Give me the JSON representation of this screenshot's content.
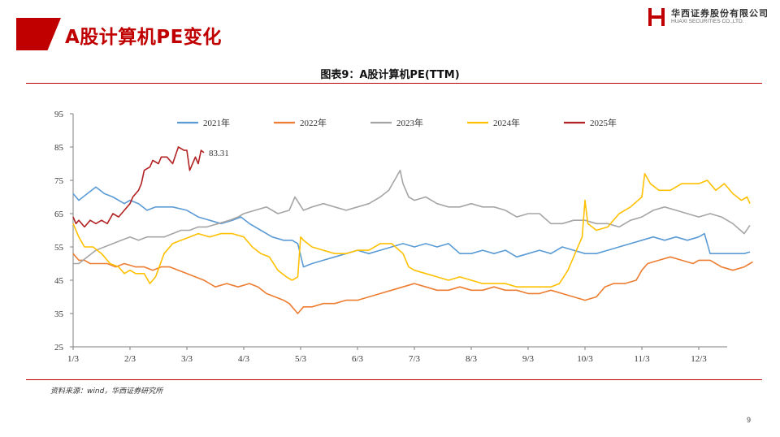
{
  "header": {
    "title": "A股计算机PE变化",
    "logo_cn": "华西证券股份有限公司",
    "logo_en": "HUAXI SECURITIES CO.,LTD."
  },
  "chart_title": "图表9：A股计算机PE(TTM)",
  "source": "资料来源：wind，华西证券研究所",
  "page_number": "9",
  "colors": {
    "accent": "#c00000",
    "s2021": "#5b9bd5",
    "s2022": "#ed7d31",
    "s2023": "#a5a5a5",
    "s2024": "#ffc000",
    "s2025": "#b22222"
  },
  "chart_data": {
    "type": "line",
    "title": "图表9：A股计算机PE(TTM)",
    "xlabel": "",
    "ylabel": "",
    "ylim": [
      25,
      95
    ],
    "yticks": [
      25,
      35,
      45,
      55,
      65,
      75,
      85,
      95
    ],
    "xtick_labels": [
      "1/3",
      "2/3",
      "3/3",
      "4/3",
      "5/3",
      "6/3",
      "7/3",
      "8/3",
      "9/3",
      "10/3",
      "11/3",
      "12/3"
    ],
    "x_unit": "month-day (month index 1–12.5)",
    "grid": false,
    "legend": "top",
    "annotation": {
      "text": "83.31",
      "series": "2025年",
      "x": 3.1,
      "y": 83.31
    },
    "series": [
      {
        "name": "2021年",
        "points": [
          [
            1.0,
            71
          ],
          [
            1.1,
            69
          ],
          [
            1.25,
            71
          ],
          [
            1.4,
            73
          ],
          [
            1.55,
            71
          ],
          [
            1.7,
            70
          ],
          [
            1.9,
            68
          ],
          [
            2.0,
            69
          ],
          [
            2.15,
            68
          ],
          [
            2.3,
            66
          ],
          [
            2.45,
            67
          ],
          [
            2.6,
            67
          ],
          [
            2.75,
            67
          ],
          [
            3.0,
            66
          ],
          [
            3.2,
            64
          ],
          [
            3.4,
            63
          ],
          [
            3.6,
            62
          ],
          [
            3.8,
            63
          ],
          [
            3.95,
            64
          ],
          [
            4.1,
            62
          ],
          [
            4.3,
            60
          ],
          [
            4.5,
            58
          ],
          [
            4.7,
            57
          ],
          [
            4.85,
            57
          ],
          [
            4.95,
            56
          ],
          [
            5.05,
            49
          ],
          [
            5.2,
            50
          ],
          [
            5.4,
            51
          ],
          [
            5.6,
            52
          ],
          [
            5.8,
            53
          ],
          [
            6.0,
            54
          ],
          [
            6.2,
            53
          ],
          [
            6.4,
            54
          ],
          [
            6.6,
            55
          ],
          [
            6.8,
            56
          ],
          [
            7.0,
            55
          ],
          [
            7.2,
            56
          ],
          [
            7.4,
            55
          ],
          [
            7.6,
            56
          ],
          [
            7.8,
            53
          ],
          [
            8.0,
            53
          ],
          [
            8.2,
            54
          ],
          [
            8.4,
            53
          ],
          [
            8.6,
            54
          ],
          [
            8.8,
            52
          ],
          [
            9.0,
            53
          ],
          [
            9.2,
            54
          ],
          [
            9.4,
            53
          ],
          [
            9.6,
            55
          ],
          [
            9.8,
            54
          ],
          [
            10.0,
            53
          ],
          [
            10.2,
            53
          ],
          [
            10.4,
            54
          ],
          [
            10.6,
            55
          ],
          [
            10.8,
            56
          ],
          [
            11.0,
            57
          ],
          [
            11.2,
            58
          ],
          [
            11.4,
            57
          ],
          [
            11.6,
            58
          ],
          [
            11.8,
            57
          ],
          [
            12.0,
            58
          ],
          [
            12.1,
            59
          ],
          [
            12.2,
            53
          ],
          [
            12.4,
            53
          ],
          [
            12.6,
            53
          ],
          [
            12.8,
            53
          ],
          [
            12.9,
            53.5
          ]
        ]
      },
      {
        "name": "2022年",
        "points": [
          [
            1.0,
            53
          ],
          [
            1.1,
            51
          ],
          [
            1.2,
            51
          ],
          [
            1.3,
            50
          ],
          [
            1.45,
            50
          ],
          [
            1.6,
            50
          ],
          [
            1.75,
            49
          ],
          [
            1.9,
            50
          ],
          [
            2.1,
            49
          ],
          [
            2.25,
            49
          ],
          [
            2.4,
            48
          ],
          [
            2.55,
            49
          ],
          [
            2.7,
            49
          ],
          [
            2.85,
            48
          ],
          [
            3.0,
            47
          ],
          [
            3.15,
            46
          ],
          [
            3.3,
            45
          ],
          [
            3.5,
            43
          ],
          [
            3.7,
            44
          ],
          [
            3.9,
            43
          ],
          [
            4.1,
            44
          ],
          [
            4.25,
            43
          ],
          [
            4.4,
            41
          ],
          [
            4.55,
            40
          ],
          [
            4.7,
            39
          ],
          [
            4.8,
            38
          ],
          [
            4.9,
            36
          ],
          [
            4.95,
            35
          ],
          [
            5.05,
            37
          ],
          [
            5.2,
            37
          ],
          [
            5.4,
            38
          ],
          [
            5.6,
            38
          ],
          [
            5.8,
            39
          ],
          [
            6.0,
            39
          ],
          [
            6.2,
            40
          ],
          [
            6.4,
            41
          ],
          [
            6.6,
            42
          ],
          [
            6.8,
            43
          ],
          [
            7.0,
            44
          ],
          [
            7.2,
            43
          ],
          [
            7.4,
            42
          ],
          [
            7.6,
            42
          ],
          [
            7.8,
            43
          ],
          [
            8.0,
            42
          ],
          [
            8.2,
            42
          ],
          [
            8.4,
            43
          ],
          [
            8.6,
            42
          ],
          [
            8.8,
            42
          ],
          [
            9.0,
            41
          ],
          [
            9.2,
            41
          ],
          [
            9.4,
            42
          ],
          [
            9.6,
            41
          ],
          [
            9.8,
            40
          ],
          [
            10.0,
            39
          ],
          [
            10.2,
            40
          ],
          [
            10.35,
            43
          ],
          [
            10.5,
            44
          ],
          [
            10.7,
            44
          ],
          [
            10.9,
            45
          ],
          [
            11.0,
            48
          ],
          [
            11.1,
            50
          ],
          [
            11.3,
            51
          ],
          [
            11.5,
            52
          ],
          [
            11.7,
            51
          ],
          [
            11.9,
            50
          ],
          [
            12.0,
            51
          ],
          [
            12.2,
            51
          ],
          [
            12.4,
            49
          ],
          [
            12.6,
            48
          ],
          [
            12.8,
            49
          ],
          [
            12.9,
            50
          ],
          [
            12.95,
            50.5
          ]
        ]
      },
      {
        "name": "2023年",
        "points": [
          [
            1.0,
            50
          ],
          [
            1.1,
            50
          ],
          [
            1.25,
            52
          ],
          [
            1.4,
            54
          ],
          [
            1.55,
            55
          ],
          [
            1.7,
            56
          ],
          [
            1.85,
            57
          ],
          [
            2.0,
            58
          ],
          [
            2.15,
            57
          ],
          [
            2.3,
            58
          ],
          [
            2.45,
            58
          ],
          [
            2.6,
            58
          ],
          [
            2.75,
            59
          ],
          [
            2.9,
            60
          ],
          [
            3.05,
            60
          ],
          [
            3.2,
            61
          ],
          [
            3.35,
            61
          ],
          [
            3.55,
            62
          ],
          [
            3.75,
            63
          ],
          [
            3.9,
            64
          ],
          [
            4.0,
            65
          ],
          [
            4.2,
            66
          ],
          [
            4.4,
            67
          ],
          [
            4.6,
            65
          ],
          [
            4.8,
            66
          ],
          [
            4.9,
            70
          ],
          [
            5.05,
            66
          ],
          [
            5.2,
            67
          ],
          [
            5.4,
            68
          ],
          [
            5.6,
            67
          ],
          [
            5.8,
            66
          ],
          [
            6.0,
            67
          ],
          [
            6.2,
            68
          ],
          [
            6.4,
            70
          ],
          [
            6.55,
            72
          ],
          [
            6.65,
            75
          ],
          [
            6.75,
            78
          ],
          [
            6.8,
            74
          ],
          [
            6.9,
            70
          ],
          [
            7.0,
            69
          ],
          [
            7.2,
            70
          ],
          [
            7.4,
            68
          ],
          [
            7.6,
            67
          ],
          [
            7.8,
            67
          ],
          [
            8.0,
            68
          ],
          [
            8.2,
            67
          ],
          [
            8.4,
            67
          ],
          [
            8.6,
            66
          ],
          [
            8.8,
            64
          ],
          [
            9.0,
            65
          ],
          [
            9.2,
            65
          ],
          [
            9.4,
            62
          ],
          [
            9.6,
            62
          ],
          [
            9.8,
            63
          ],
          [
            10.0,
            63
          ],
          [
            10.2,
            62
          ],
          [
            10.4,
            62
          ],
          [
            10.6,
            61
          ],
          [
            10.8,
            63
          ],
          [
            11.0,
            64
          ],
          [
            11.2,
            66
          ],
          [
            11.4,
            67
          ],
          [
            11.6,
            66
          ],
          [
            11.8,
            65
          ],
          [
            12.0,
            64
          ],
          [
            12.2,
            65
          ],
          [
            12.4,
            64
          ],
          [
            12.6,
            62
          ],
          [
            12.8,
            59
          ],
          [
            12.9,
            61.5
          ]
        ]
      },
      {
        "name": "2024年",
        "points": [
          [
            1.0,
            62
          ],
          [
            1.1,
            58
          ],
          [
            1.2,
            55
          ],
          [
            1.35,
            55
          ],
          [
            1.5,
            53
          ],
          [
            1.65,
            50
          ],
          [
            1.8,
            49
          ],
          [
            1.9,
            47
          ],
          [
            2.0,
            48
          ],
          [
            2.1,
            47
          ],
          [
            2.25,
            47
          ],
          [
            2.35,
            44
          ],
          [
            2.45,
            46
          ],
          [
            2.6,
            53
          ],
          [
            2.75,
            56
          ],
          [
            2.9,
            57
          ],
          [
            3.05,
            58
          ],
          [
            3.2,
            59
          ],
          [
            3.4,
            58
          ],
          [
            3.6,
            59
          ],
          [
            3.8,
            59
          ],
          [
            4.0,
            58
          ],
          [
            4.15,
            55
          ],
          [
            4.3,
            53
          ],
          [
            4.45,
            52
          ],
          [
            4.6,
            48
          ],
          [
            4.75,
            46
          ],
          [
            4.85,
            45
          ],
          [
            4.95,
            46
          ],
          [
            5.0,
            58
          ],
          [
            5.05,
            57
          ],
          [
            5.2,
            55
          ],
          [
            5.4,
            54
          ],
          [
            5.6,
            53
          ],
          [
            5.8,
            53
          ],
          [
            6.0,
            54
          ],
          [
            6.2,
            54
          ],
          [
            6.4,
            56
          ],
          [
            6.6,
            56
          ],
          [
            6.8,
            53
          ],
          [
            6.9,
            49
          ],
          [
            7.0,
            48
          ],
          [
            7.2,
            47
          ],
          [
            7.4,
            46
          ],
          [
            7.6,
            45
          ],
          [
            7.8,
            46
          ],
          [
            8.0,
            45
          ],
          [
            8.2,
            44
          ],
          [
            8.4,
            44
          ],
          [
            8.6,
            44
          ],
          [
            8.8,
            43
          ],
          [
            9.0,
            43
          ],
          [
            9.2,
            43
          ],
          [
            9.4,
            43
          ],
          [
            9.55,
            44
          ],
          [
            9.7,
            48
          ],
          [
            9.85,
            54
          ],
          [
            9.95,
            58
          ],
          [
            10.0,
            69
          ],
          [
            10.05,
            62
          ],
          [
            10.2,
            60
          ],
          [
            10.4,
            61
          ],
          [
            10.6,
            65
          ],
          [
            10.8,
            67
          ],
          [
            11.0,
            70
          ],
          [
            11.05,
            77
          ],
          [
            11.15,
            74
          ],
          [
            11.3,
            72
          ],
          [
            11.5,
            72
          ],
          [
            11.7,
            74
          ],
          [
            11.9,
            74
          ],
          [
            12.0,
            74
          ],
          [
            12.15,
            75
          ],
          [
            12.3,
            72
          ],
          [
            12.45,
            74
          ],
          [
            12.6,
            71
          ],
          [
            12.75,
            69
          ],
          [
            12.85,
            70
          ],
          [
            12.9,
            68
          ]
        ]
      },
      {
        "name": "2025年",
        "points": [
          [
            1.0,
            64
          ],
          [
            1.05,
            62
          ],
          [
            1.1,
            63
          ],
          [
            1.2,
            61
          ],
          [
            1.3,
            63
          ],
          [
            1.4,
            62
          ],
          [
            1.5,
            63
          ],
          [
            1.6,
            62
          ],
          [
            1.7,
            65
          ],
          [
            1.8,
            64
          ],
          [
            1.9,
            66
          ],
          [
            2.0,
            68
          ],
          [
            2.05,
            70
          ],
          [
            2.15,
            72
          ],
          [
            2.2,
            74
          ],
          [
            2.25,
            78
          ],
          [
            2.35,
            79
          ],
          [
            2.4,
            81
          ],
          [
            2.5,
            80
          ],
          [
            2.55,
            82
          ],
          [
            2.65,
            82
          ],
          [
            2.75,
            80
          ],
          [
            2.85,
            85
          ],
          [
            2.95,
            84
          ],
          [
            3.0,
            84
          ],
          [
            3.05,
            78
          ],
          [
            3.1,
            80
          ],
          [
            3.15,
            82
          ],
          [
            3.2,
            80
          ],
          [
            3.25,
            84
          ],
          [
            3.3,
            83.31
          ]
        ]
      }
    ]
  }
}
